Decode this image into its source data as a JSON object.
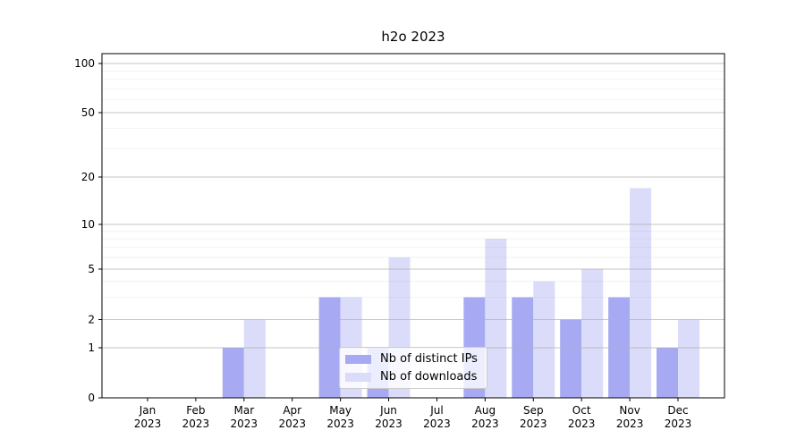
{
  "chart_data": {
    "type": "bar",
    "title": "h2o 2023",
    "categories": [
      "Jan",
      "Feb",
      "Mar",
      "Apr",
      "May",
      "Jun",
      "Jul",
      "Aug",
      "Sep",
      "Oct",
      "Nov",
      "Dec"
    ],
    "year": "2023",
    "series": [
      {
        "name": "Nb of distinct IPs",
        "color": "#a7aaf3",
        "values": [
          0,
          0,
          1,
          0,
          3,
          1,
          0,
          3,
          3,
          2,
          3,
          1
        ]
      },
      {
        "name": "Nb of downloads",
        "color": "#dadcf9",
        "values": [
          0,
          0,
          2,
          0,
          3,
          6,
          0,
          8,
          4,
          5,
          17,
          2
        ]
      }
    ],
    "y_axis": {
      "scale": "log-like (compressed near zero)",
      "range": [
        0,
        100
      ],
      "ticks": [
        0,
        1,
        2,
        5,
        10,
        20,
        50,
        100
      ],
      "minor_ticks": [
        3,
        4,
        6,
        7,
        8,
        9,
        30,
        40,
        60,
        70,
        80,
        90
      ]
    },
    "x_axis": {
      "label_style": "month over year, two lines"
    },
    "grid": true,
    "grid_over_bars": true,
    "legend": {
      "position": "lower center"
    },
    "colors": {
      "axis": "#000000",
      "major_grid": "#b0b0b0",
      "minor_grid": "#b0b0b0",
      "background": "#ffffff"
    }
  }
}
